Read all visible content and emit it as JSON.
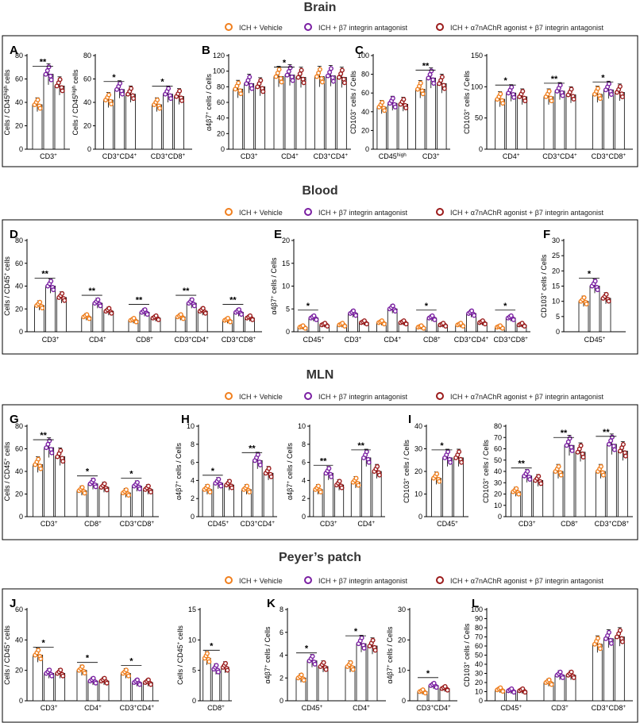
{
  "legend": {
    "vehicle": "ICH + Vehicle",
    "antagonist": "ICH + β7 integrin antagonist",
    "combo": "ICH + α7nAChR agonist + β7 integrin antagonist"
  },
  "colors": {
    "vehicle": "#f07f1e",
    "antagonist": "#7a1fa2",
    "combo": "#9b1b1b"
  },
  "sections": [
    {
      "title": "Brain",
      "panels": [
        {
          "letter": "A",
          "ylabel": "Cells / CD45<sup>high</sup> cells",
          "ylim": [
            0,
            80
          ],
          "ticks": [
            0,
            20,
            40,
            60,
            80
          ],
          "groups": [
            {
              "label": "CD3<sup>+</sup>",
              "values": [
                38,
                64,
                54
              ],
              "sig": "**"
            }
          ]
        },
        {
          "ylabel": "Cells / CD45<sup>high</sup> cells",
          "ylim": [
            0,
            80
          ],
          "ticks": [
            0,
            20,
            40,
            60,
            80
          ],
          "groups": [
            {
              "label": "CD3<sup>+</sup>CD4<sup>+</sup>",
              "values": [
                42,
                51,
                47
              ],
              "sig": "*"
            },
            {
              "label": "CD3<sup>+</sup>CD8<sup>+</sup>",
              "values": [
                38,
                47,
                45
              ],
              "sig": "*"
            }
          ]
        },
        {
          "letter": "B",
          "ylabel": "α4β7<sup>+</sup> cells / Cells",
          "ylim": [
            0,
            120
          ],
          "ticks": [
            0,
            20,
            40,
            60,
            80,
            100,
            120
          ],
          "groups": [
            {
              "label": "CD3<sup>+</sup>",
              "values": [
                77,
                84,
                80
              ],
              "sig": ""
            },
            {
              "label": "CD4<sup>+</sup>",
              "values": [
                93,
                95,
                92
              ],
              "sig": "*"
            },
            {
              "label": "CD3<sup>+</sup>CD4<sup>+</sup>",
              "values": [
                93,
                94,
                92
              ],
              "sig": ""
            }
          ]
        },
        {
          "letter": "C",
          "ylabel": "CD103<sup>+</sup> cells / Cells",
          "ylim": [
            0,
            100
          ],
          "ticks": [
            0,
            20,
            40,
            60,
            80,
            100
          ],
          "groups": [
            {
              "label": "CD45<sup>high</sup>",
              "values": [
                45,
                49,
                48
              ],
              "sig": ""
            },
            {
              "label": "CD3<sup>+</sup>",
              "values": [
                64,
                76,
                70
              ],
              "sig": "**"
            }
          ]
        },
        {
          "ylabel": "CD103<sup>+</sup> cells / Cells",
          "ylim": [
            0,
            150
          ],
          "ticks": [
            0,
            50,
            100,
            150
          ],
          "groups": [
            {
              "label": "CD4<sup>+</sup>",
              "values": [
                80,
                90,
                84
              ],
              "sig": "*"
            },
            {
              "label": "CD3<sup>+</sup>CD4<sup>+</sup>",
              "values": [
                84,
                93,
                87
              ],
              "sig": "**"
            },
            {
              "label": "CD3<sup>+</sup>CD8<sup>+</sup>",
              "values": [
                88,
                95,
                91
              ],
              "sig": "*"
            }
          ]
        }
      ]
    },
    {
      "title": "Blood",
      "panels": [
        {
          "letter": "D",
          "ylabel": "Cells / CD45<sup>+</sup> cells",
          "ylim": [
            0,
            80
          ],
          "ticks": [
            0,
            20,
            40,
            60,
            80
          ],
          "groups": [
            {
              "label": "CD3<sup>+</sup>",
              "values": [
                23,
                40,
                30
              ],
              "sig": "**"
            },
            {
              "label": "CD4<sup>+</sup>",
              "values": [
                13,
                25,
                18
              ],
              "sig": "**"
            },
            {
              "label": "CD8<sup>+</sup>",
              "values": [
                10,
                17,
                12
              ],
              "sig": "**"
            },
            {
              "label": "CD3<sup>+</sup>CD4<sup>+</sup>",
              "values": [
                13,
                25,
                18
              ],
              "sig": "**"
            },
            {
              "label": "CD3<sup>+</sup>CD8<sup>+</sup>",
              "values": [
                10,
                17,
                12
              ],
              "sig": "**"
            }
          ]
        },
        {
          "letter": "E",
          "ylabel": "α4β7<sup>+</sup> cells / Cells",
          "ylim": [
            0,
            20
          ],
          "ticks": [
            0,
            5,
            10,
            15,
            20
          ],
          "groups": [
            {
              "label": "CD45<sup>+</sup>",
              "values": [
                1,
                3,
                1.5
              ],
              "sig": "*"
            },
            {
              "label": "CD3<sup>+</sup>",
              "values": [
                1.5,
                4,
                2
              ],
              "sig": ""
            },
            {
              "label": "CD4<sup>+</sup>",
              "values": [
                2,
                5,
                2
              ],
              "sig": ""
            },
            {
              "label": "CD8<sup>+</sup>",
              "values": [
                1,
                3,
                1.5
              ],
              "sig": "*"
            },
            {
              "label": "CD3<sup>+</sup>CD4<sup>+</sup>",
              "values": [
                1.5,
                4,
                2
              ],
              "sig": ""
            },
            {
              "label": "CD3<sup>+</sup>CD8<sup>+</sup>",
              "values": [
                1,
                3,
                1.5
              ],
              "sig": "*"
            }
          ]
        },
        {
          "letter": "F",
          "ylabel": "CD103<sup>+</sup> cells / Cells",
          "ylim": [
            0,
            30
          ],
          "ticks": [
            0,
            5,
            10,
            15,
            20,
            25,
            30
          ],
          "groups": [
            {
              "label": "CD45<sup>+</sup>",
              "values": [
                10,
                15,
                11
              ],
              "sig": "*"
            }
          ]
        }
      ]
    },
    {
      "title": "MLN",
      "panels": [
        {
          "letter": "G",
          "ylabel": "Cells / CD45<sup>+</sup> cells",
          "ylim": [
            0,
            80
          ],
          "ticks": [
            0,
            20,
            40,
            60,
            80
          ],
          "groups": [
            {
              "label": "CD3<sup>+</sup>",
              "values": [
                46,
                61,
                53
              ],
              "sig": "**"
            },
            {
              "label": "CD8<sup>+</sup>",
              "values": [
                23,
                29,
                26
              ],
              "sig": "*"
            },
            {
              "label": "CD3<sup>+</sup>CD8<sup>+</sup>",
              "values": [
                21,
                27,
                24
              ],
              "sig": "*"
            }
          ]
        },
        {
          "letter": "H",
          "ylabel": "α4β7<sup>+</sup> cells / Cells",
          "ylim": [
            0,
            10
          ],
          "ticks": [
            0,
            2,
            4,
            6,
            8,
            10
          ],
          "groups": [
            {
              "label": "CD45<sup>+</sup>",
              "values": [
                3,
                3.7,
                3.5
              ],
              "sig": "*"
            },
            {
              "label": "CD3<sup>+</sup>CD4<sup>+</sup>",
              "values": [
                3,
                6.2,
                4.8
              ],
              "sig": "**"
            }
          ]
        },
        {
          "ylabel": "α4β7<sup>+</sup> cells / Cells",
          "ylim": [
            0,
            10
          ],
          "ticks": [
            0,
            2,
            4,
            6,
            8,
            10
          ],
          "groups": [
            {
              "label": "CD3<sup>+</sup>",
              "values": [
                3,
                4.8,
                3.5
              ],
              "sig": "**"
            },
            {
              "label": "CD4<sup>+</sup>",
              "values": [
                3.8,
                6.5,
                5
              ],
              "sig": "**"
            }
          ]
        },
        {
          "letter": "I",
          "ylabel": "CD103<sup>+</sup> cells / Cells",
          "ylim": [
            0,
            40
          ],
          "ticks": [
            0,
            10,
            20,
            30,
            40
          ],
          "groups": [
            {
              "label": "CD45<sup>+</sup>",
              "values": [
                17,
                26,
                26
              ],
              "sig": "*"
            }
          ]
        },
        {
          "ylabel": "CD103<sup>+</sup> cells / Cells",
          "ylim": [
            0,
            80
          ],
          "ticks": [
            0,
            10,
            20,
            30,
            40,
            50,
            60,
            70,
            80
          ],
          "groups": [
            {
              "label": "CD3<sup>+</sup>",
              "values": [
                22,
                36,
                32
              ],
              "sig": "**"
            },
            {
              "label": "CD8<sup>+</sup>",
              "values": [
                40,
                63,
                57
              ],
              "sig": "**"
            },
            {
              "label": "CD3<sup>+</sup>CD8<sup>+</sup>",
              "values": [
                40,
                64,
                58
              ],
              "sig": "**"
            }
          ]
        }
      ]
    },
    {
      "title": "Peyer’s patch",
      "panels": [
        {
          "letter": "J",
          "ylabel": "Cells / CD45<sup>+</sup> cells",
          "ylim": [
            0,
            60
          ],
          "ticks": [
            0,
            20,
            40,
            60
          ],
          "groups": [
            {
              "label": "CD3<sup>+</sup>",
              "values": [
                30,
                18,
                18
              ],
              "sig": "*"
            },
            {
              "label": "CD4<sup>+</sup>",
              "values": [
                20,
                13,
                13
              ],
              "sig": "*"
            },
            {
              "label": "CD3<sup>+</sup>CD4<sup>+</sup>",
              "values": [
                18,
                12,
                12
              ],
              "sig": "*"
            }
          ]
        },
        {
          "ylabel": "Cells / CD45<sup>+</sup> cells",
          "ylim": [
            0,
            15
          ],
          "ticks": [
            0,
            5,
            10,
            15
          ],
          "groups": [
            {
              "label": "CD8<sup>+</sup>",
              "values": [
                7,
                5.2,
                5.5
              ],
              "sig": "*"
            }
          ]
        },
        {
          "letter": "K",
          "ylabel": "α4β7<sup>+</sup> cells / Cells",
          "ylim": [
            0,
            8
          ],
          "ticks": [
            0,
            2,
            4,
            6,
            8
          ],
          "groups": [
            {
              "label": "CD45<sup>+</sup>",
              "values": [
                2,
                3.5,
                3
              ],
              "sig": "*"
            },
            {
              "label": "CD4<sup>+</sup>",
              "values": [
                3,
                5,
                4.8
              ],
              "sig": "*"
            }
          ]
        },
        {
          "ylabel": "α4β7<sup>+</sup> cells / Cells",
          "ylim": [
            0,
            30
          ],
          "ticks": [
            0,
            10,
            20,
            30
          ],
          "groups": [
            {
              "label": "CD3<sup>+</sup>CD4<sup>+</sup>",
              "values": [
                3,
                5,
                4
              ],
              "sig": "*"
            }
          ]
        },
        {
          "letter": "L",
          "ylabel": "CD103<sup>+</sup> cells / Cells",
          "ylim": [
            0,
            100
          ],
          "ticks": [
            0,
            10,
            20,
            30,
            40,
            50,
            60,
            70,
            80,
            90,
            100
          ],
          "groups": [
            {
              "label": "CD45<sup>+</sup>",
              "values": [
                12,
                11,
                11
              ],
              "sig": ""
            },
            {
              "label": "CD3<sup>+</sup>",
              "values": [
                20,
                28,
                28
              ],
              "sig": ""
            },
            {
              "label": "CD3<sup>+</sup>CD8<sup>+</sup>",
              "values": [
                62,
                68,
                70
              ],
              "sig": ""
            }
          ]
        }
      ]
    }
  ],
  "chart_data": {
    "type": "bar",
    "title": "Brain / Blood / MLN / Peyer’s patch",
    "series": [
      {
        "name": "ICH + Vehicle"
      },
      {
        "name": "ICH + β7 integrin antagonist"
      },
      {
        "name": "ICH + α7nAChR agonist + β7 integrin antagonist"
      }
    ]
  }
}
